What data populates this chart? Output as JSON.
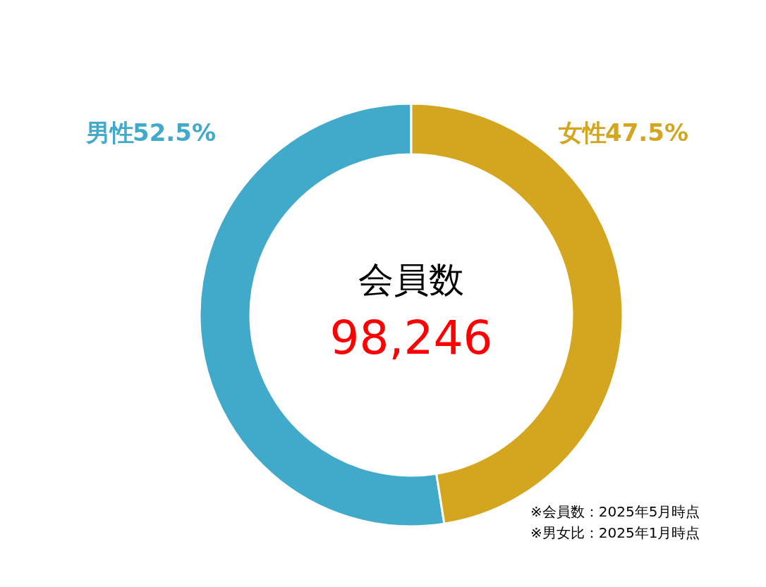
{
  "chart_data": {
    "type": "donut",
    "title": "会員数",
    "subtitle": "98,246",
    "categories": [
      "男性",
      "女性"
    ],
    "values": [
      52.5,
      47.5
    ],
    "colors": [
      "#41aacb",
      "#d4a620"
    ],
    "value_labels": [
      "52.5%",
      "47.5%"
    ],
    "annotations": [
      "※会員数：2025年5月時点",
      "※男女比：2025年1月時点"
    ],
    "legend": false
  }
}
